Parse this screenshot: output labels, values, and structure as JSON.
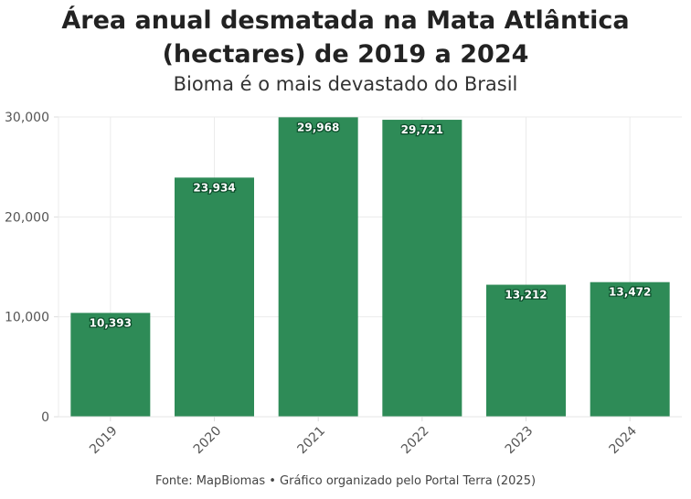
{
  "chart_data": {
    "type": "bar",
    "title": "Área anual desmatada na Mata Atlântica (hectares) de 2019 a 2024",
    "subtitle": "Bioma é o mais devastado do Brasil",
    "categories": [
      "2019",
      "2020",
      "2021",
      "2022",
      "2023",
      "2024"
    ],
    "values": [
      10393,
      23934,
      29968,
      29721,
      13212,
      13472
    ],
    "value_labels": [
      "10,393",
      "23,934",
      "29,968",
      "29,721",
      "13,212",
      "13,472"
    ],
    "yticks": [
      0,
      10000,
      20000,
      30000
    ],
    "ytick_labels": [
      "0",
      "10,000",
      "20,000",
      "30,000"
    ],
    "ylim": [
      0,
      30000
    ],
    "xlabel": "",
    "ylabel": "",
    "grid": true,
    "bar_color": "#2e8b57",
    "source": "Fonte: MapBiomas • Gráfico organizado pelo Portal Terra (2025)"
  }
}
